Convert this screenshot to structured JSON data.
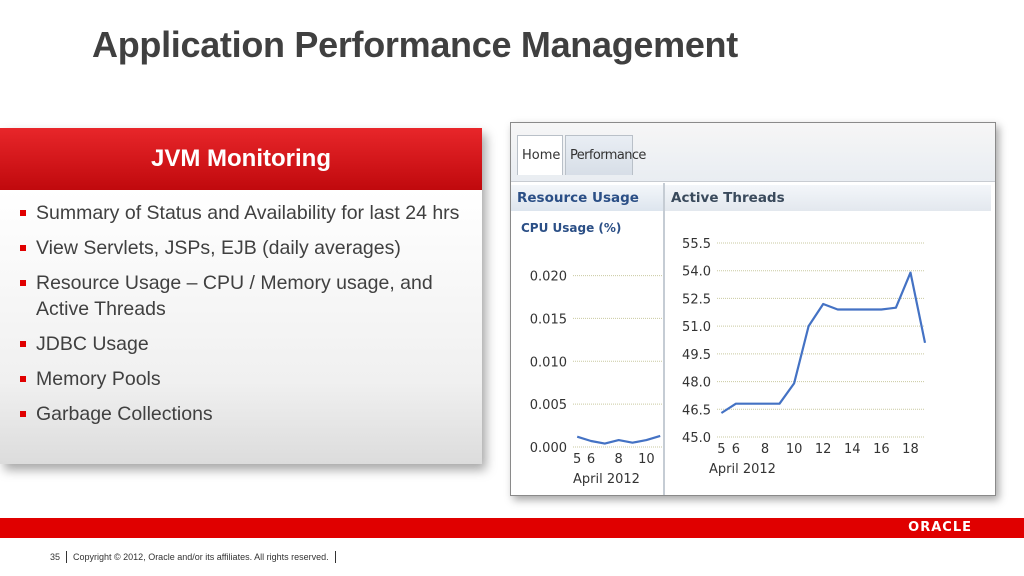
{
  "slide": {
    "title": "Application Performance Management",
    "panel_title": "JVM Monitoring",
    "bullets": [
      "Summary of Status and Availability for last 24 hrs",
      "View Servlets, JSPs, EJB (daily averages)",
      "Resource Usage – CPU / Memory usage, and Active Threads",
      "JDBC Usage",
      "Memory Pools",
      "Garbage Collections"
    ]
  },
  "screenshot": {
    "tabs": [
      "Home",
      "Performance"
    ],
    "active_tab": "Home",
    "resource_section": "Resource Usage",
    "active_section": "Active Threads",
    "cpu_title": "CPU Usage (%)"
  },
  "chart_data": [
    {
      "type": "line",
      "title": "CPU Usage (%)",
      "xlabel": "April 2012",
      "ylabel": "",
      "x_ticks": [
        5,
        6,
        8,
        10
      ],
      "y_ticks": [
        "0.000",
        "0.005",
        "0.010",
        "0.015",
        "0.020"
      ],
      "xlim": [
        4.7,
        11.2
      ],
      "ylim": [
        0,
        0.021
      ],
      "series": [
        {
          "x": [
            5,
            6,
            7,
            8,
            9,
            10,
            11
          ],
          "y": [
            0.0012,
            0.0007,
            0.0004,
            0.0008,
            0.0005,
            0.0008,
            0.0013
          ]
        }
      ],
      "line_color": "#4472c4",
      "grid": true
    },
    {
      "type": "line",
      "title": "Active Threads",
      "xlabel": "April 2012",
      "ylabel": "",
      "x_ticks": [
        5,
        6,
        8,
        10,
        12,
        14,
        16,
        18
      ],
      "y_ticks": [
        "45.0",
        "46.5",
        "48.0",
        "49.5",
        "51.0",
        "52.5",
        "54.0",
        "55.5"
      ],
      "xlim": [
        4.7,
        19.0
      ],
      "ylim": [
        45,
        55.5
      ],
      "series": [
        {
          "x": [
            5,
            6,
            7,
            8,
            9,
            10,
            11,
            12,
            13,
            14,
            15,
            16,
            17,
            18,
            19
          ],
          "y": [
            46.3,
            46.8,
            46.8,
            46.8,
            46.8,
            47.9,
            51.0,
            52.2,
            51.9,
            51.9,
            51.9,
            51.9,
            52.0,
            53.9,
            50.1
          ]
        }
      ],
      "line_color": "#4472c4",
      "grid": true
    }
  ],
  "footer": {
    "page_number": "35",
    "copyright": "Copyright © 2012, Oracle and/or its affiliates. All rights reserved.",
    "logo": "ORACLE"
  }
}
